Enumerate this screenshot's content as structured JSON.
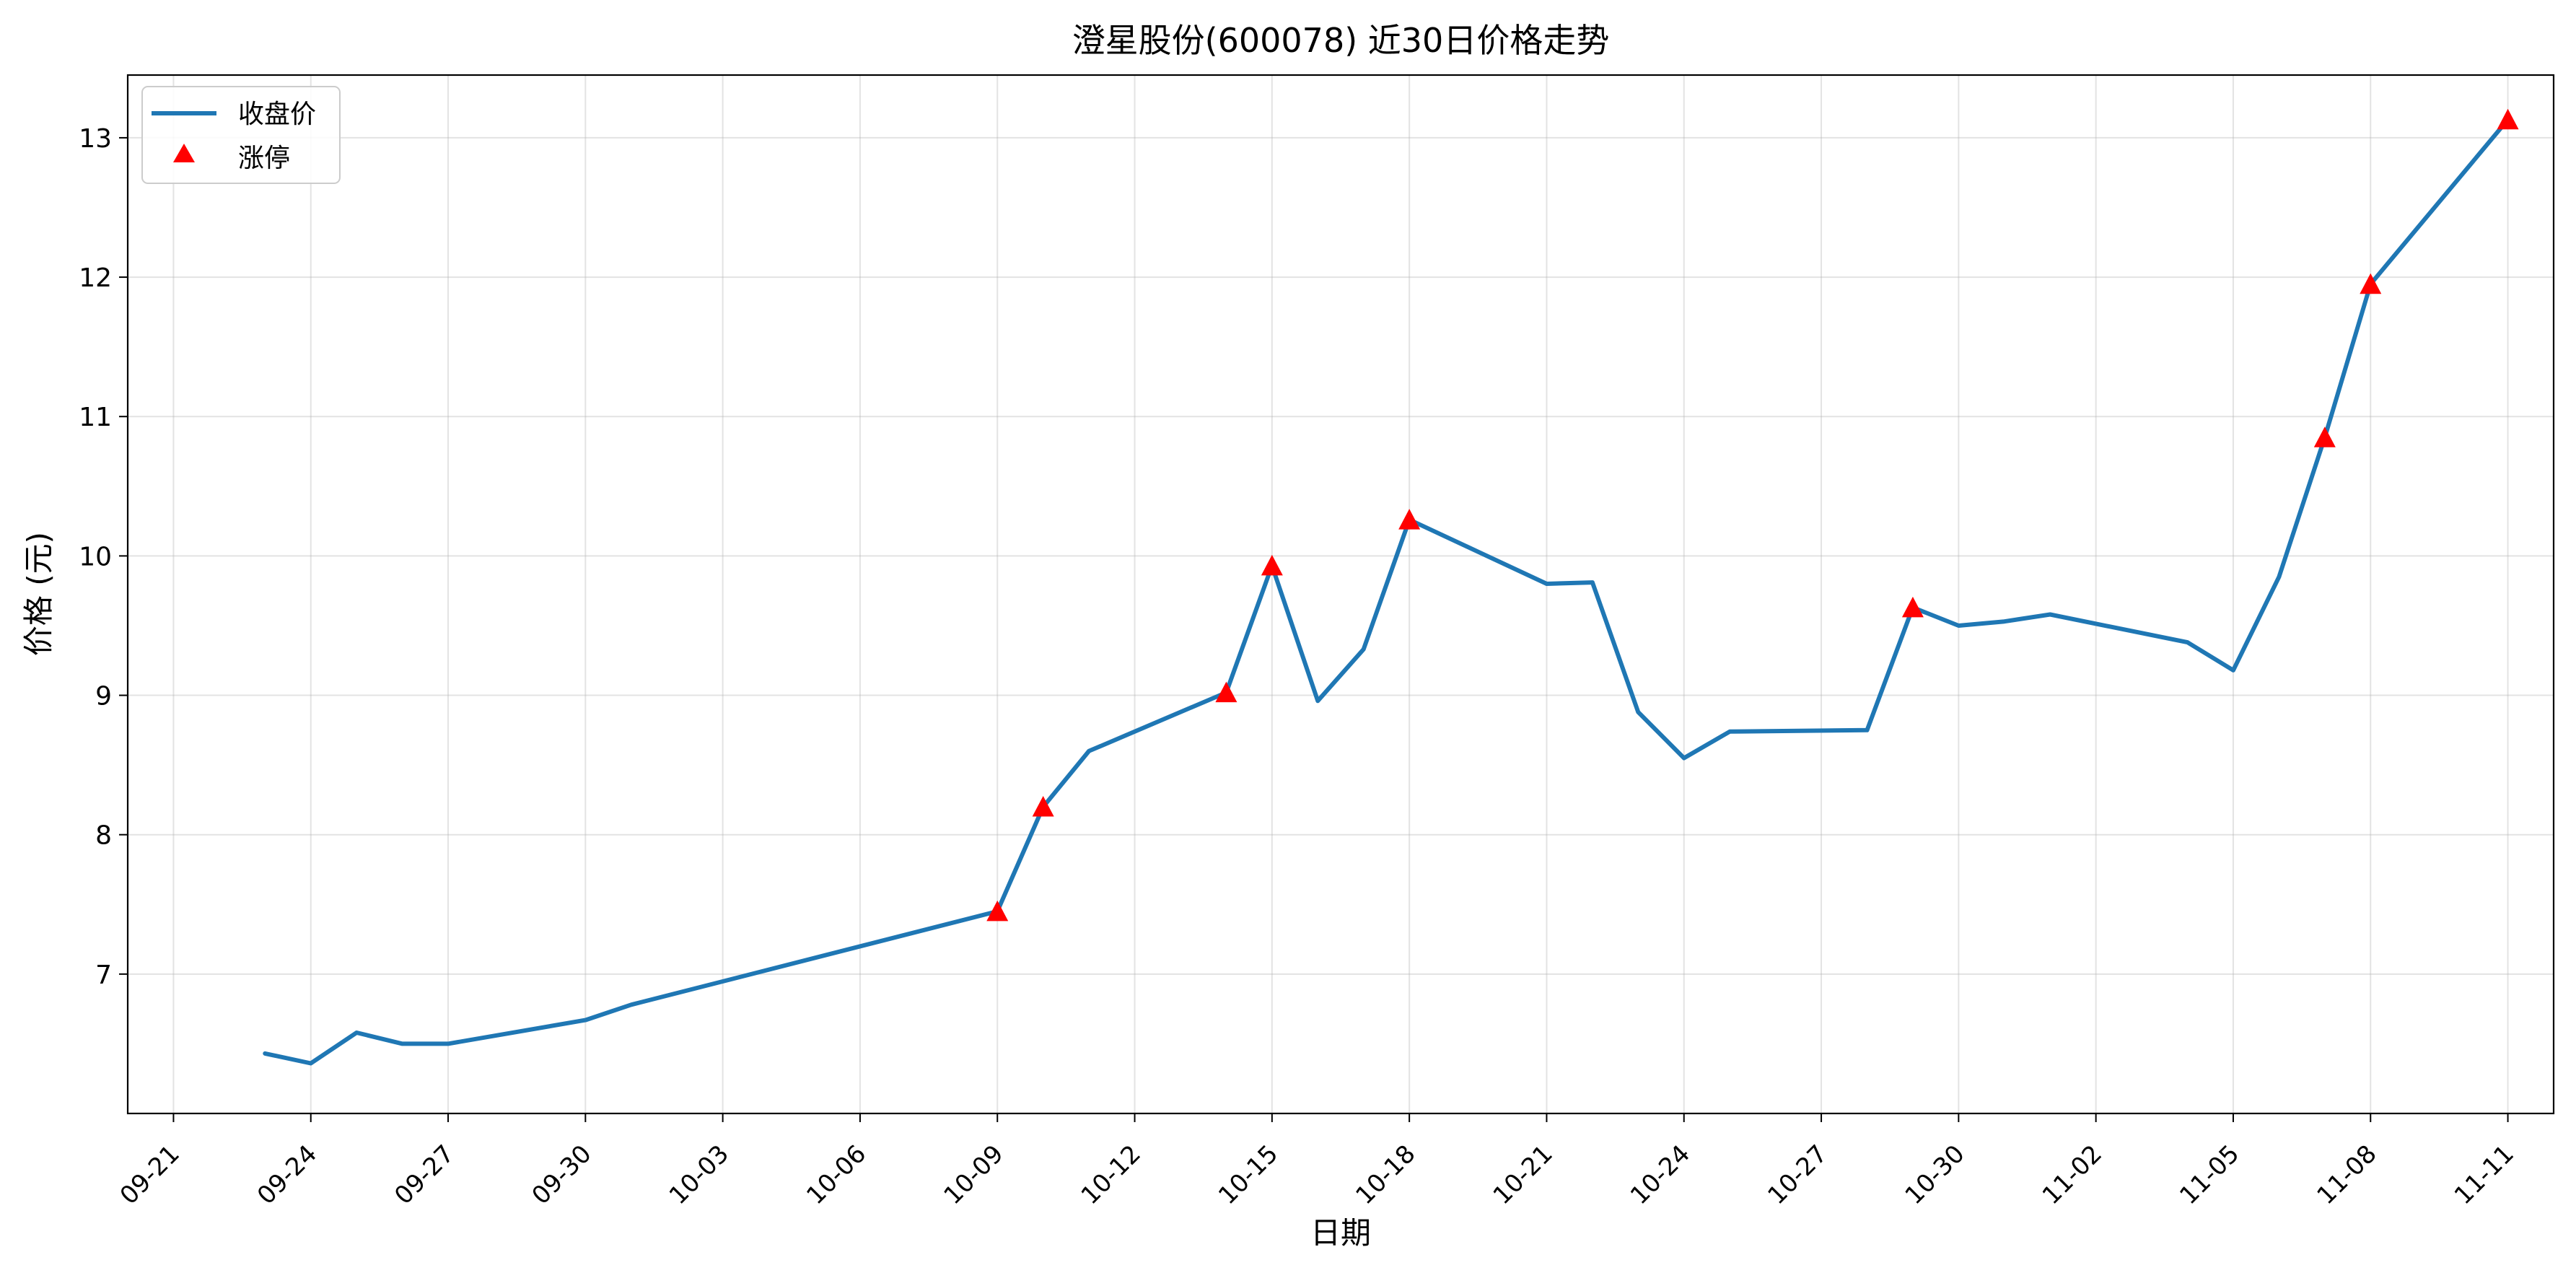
{
  "chart_data": {
    "type": "line",
    "title": "澄星股份(600078) 近30日价格走势",
    "xlabel": "日期",
    "ylabel": "价格 (元)",
    "ylim": [
      6.0,
      13.45
    ],
    "xlim": [
      "2024-09-20",
      "2024-11-12"
    ],
    "x_ticks": [
      "09-21",
      "09-24",
      "09-27",
      "09-30",
      "10-03",
      "10-06",
      "10-09",
      "10-12",
      "10-15",
      "10-18",
      "10-21",
      "10-24",
      "10-27",
      "10-30",
      "11-02",
      "11-05",
      "11-08",
      "11-11"
    ],
    "y_ticks": [
      7,
      8,
      9,
      10,
      11,
      12,
      13
    ],
    "grid": true,
    "legend_position": "top-left",
    "series": [
      {
        "name": "收盘价",
        "color": "#1f77b4",
        "kind": "line",
        "x": [
          "2024-09-23",
          "2024-09-24",
          "2024-09-25",
          "2024-09-26",
          "2024-09-27",
          "2024-09-30",
          "2024-10-01",
          "2024-10-09",
          "2024-10-10",
          "2024-10-11",
          "2024-10-14",
          "2024-10-15",
          "2024-10-16",
          "2024-10-17",
          "2024-10-18",
          "2024-10-21",
          "2024-10-22",
          "2024-10-23",
          "2024-10-24",
          "2024-10-25",
          "2024-10-28",
          "2024-10-29",
          "2024-10-30",
          "2024-10-31",
          "2024-11-01",
          "2024-11-04",
          "2024-11-05",
          "2024-11-06",
          "2024-11-07",
          "2024-11-08",
          "2024-11-11"
        ],
        "values": [
          6.43,
          6.36,
          6.58,
          6.5,
          6.5,
          6.67,
          6.78,
          7.45,
          8.2,
          8.6,
          9.02,
          9.93,
          8.96,
          9.33,
          10.26,
          9.8,
          9.81,
          8.88,
          8.55,
          8.74,
          8.75,
          9.63,
          9.5,
          9.53,
          9.58,
          9.38,
          9.18,
          9.85,
          10.85,
          11.95,
          13.13
        ]
      },
      {
        "name": "涨停",
        "color": "#ff0000",
        "kind": "marker",
        "x": [
          "2024-10-09",
          "2024-10-10",
          "2024-10-14",
          "2024-10-15",
          "2024-10-18",
          "2024-10-29",
          "2024-11-07",
          "2024-11-08",
          "2024-11-11"
        ],
        "values": [
          7.45,
          8.2,
          9.02,
          9.93,
          10.26,
          9.63,
          10.85,
          11.95,
          13.13
        ]
      }
    ]
  }
}
